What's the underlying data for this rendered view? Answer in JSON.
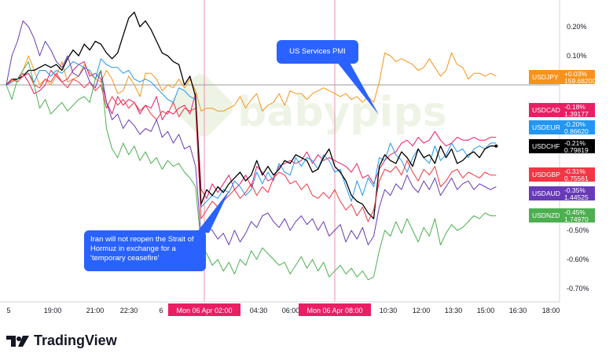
{
  "branding": {
    "logo_text": "TradingView",
    "watermark": "babypips"
  },
  "annotations": {
    "pmi": "US Services PMI",
    "iran": "Iran will not reopen the Strait of Hormuz in exchange for a 'temporary ceasefire'"
  },
  "chart_data": {
    "type": "line",
    "title": "",
    "xlabel": "",
    "ylabel": "",
    "y_unit": "%",
    "ylim": [
      -0.78,
      0.27
    ],
    "grid": false,
    "legend": "right-edge labels",
    "y_ticks": [
      "0.20%",
      "0.10%",
      "-0.50%",
      "-0.60%",
      "-0.70%"
    ],
    "x_ticks": [
      "5",
      "19:00",
      "21:00",
      "22:30",
      "6",
      "02:00",
      "04:30",
      "06:00",
      "08:00",
      "10:30",
      "12:00",
      "13:30",
      "15:00",
      "16:30",
      "18:00"
    ],
    "x_highlights": [
      "Mon 06 Apr  02:00",
      "Mon 06 Apr  08:00"
    ],
    "x": [
      "17:30",
      "17:45",
      "18:00",
      "18:15",
      "18:30",
      "18:45",
      "19:00",
      "19:15",
      "19:30",
      "19:45",
      "20:00",
      "20:15",
      "20:30",
      "20:45",
      "21:00",
      "21:15",
      "21:30",
      "21:45",
      "22:00",
      "22:15",
      "22:30",
      "22:45",
      "23:00",
      "23:15",
      "23:30",
      "23:45",
      "00:00",
      "00:15",
      "00:30",
      "00:45",
      "01:00",
      "01:15",
      "01:30",
      "01:45",
      "02:00",
      "02:15",
      "02:30",
      "02:45",
      "03:00",
      "03:15",
      "03:30",
      "03:45",
      "04:00",
      "04:15",
      "04:30",
      "04:45",
      "05:00",
      "05:15",
      "05:30",
      "05:45",
      "06:00",
      "06:15",
      "06:30",
      "06:45",
      "07:00",
      "07:15",
      "07:30",
      "07:45",
      "08:00",
      "08:15",
      "08:30",
      "08:45",
      "09:00",
      "09:15",
      "09:30",
      "09:45",
      "10:00",
      "10:15",
      "10:30",
      "10:45",
      "11:00",
      "11:15",
      "11:30",
      "11:45",
      "12:00",
      "12:15",
      "12:30",
      "12:45",
      "13:00",
      "13:15",
      "13:30",
      "13:45",
      "14:00",
      "14:15",
      "14:30",
      "14:45",
      "15:00",
      "15:15",
      "15:30"
    ],
    "series": [
      {
        "name": "USDJPY",
        "color": "#f7931a",
        "last_change": "+0.03%",
        "last_price": "159.68200",
        "values": [
          0,
          0.015,
          0.02,
          0.05,
          0.1,
          0.05,
          0,
          0.02,
          0,
          0.03,
          0.08,
          0.01,
          0.02,
          0.03,
          0.07,
          0.04,
          0.02,
          0.01,
          0.05,
          0.02,
          -0.03,
          -0.02,
          0.03,
          0,
          -0.04,
          0.04,
          0.04,
          0.02,
          -0.02,
          0,
          -0.01,
          0.02,
          -0.01,
          0.02,
          -0.02,
          -0.09,
          -0.08,
          -0.08,
          -0.09,
          -0.09,
          -0.08,
          -0.07,
          -0.04,
          -0.08,
          -0.05,
          -0.03,
          -0.09,
          -0.07,
          -0.06,
          -0.03,
          -0.07,
          -0.02,
          -0.03,
          -0.03,
          -0.05,
          -0.03,
          -0.02,
          -0.01,
          -0.02,
          -0.03,
          -0.04,
          -0.03,
          -0.05,
          -0.04,
          -0.06,
          -0.04,
          -0.06,
          0.01,
          0.11,
          0.1,
          0.08,
          0.09,
          0.08,
          0.07,
          0.05,
          0.06,
          0.09,
          0.06,
          0.03,
          0.05,
          0.11,
          0.07,
          0.06,
          0.02,
          0.04,
          0.04,
          0.03,
          0.04,
          0.03
        ]
      },
      {
        "name": "USDCAD",
        "color": "#e91e63",
        "last_change": "-0.18%",
        "last_price": "1.39177",
        "values": [
          0,
          0.01,
          0.02,
          0.04,
          0.01,
          -0.03,
          -0.02,
          0,
          0.05,
          0.03,
          0.01,
          0.02,
          0.05,
          0.07,
          0.08,
          0.03,
          0.04,
          0.02,
          -0.06,
          -0.1,
          -0.04,
          -0.07,
          -0.05,
          -0.06,
          -0.1,
          -0.07,
          -0.08,
          -0.04,
          -0.12,
          -0.09,
          -0.1,
          -0.08,
          -0.07,
          -0.1,
          -0.03,
          -0.36,
          -0.39,
          -0.34,
          -0.37,
          -0.34,
          -0.31,
          -0.36,
          -0.34,
          -0.31,
          -0.35,
          -0.28,
          -0.3,
          -0.33,
          -0.32,
          -0.28,
          -0.27,
          -0.26,
          -0.27,
          -0.26,
          -0.23,
          -0.27,
          -0.24,
          -0.26,
          -0.25,
          -0.26,
          -0.27,
          -0.28,
          -0.3,
          -0.27,
          -0.32,
          -0.31,
          -0.34,
          -0.29,
          -0.26,
          -0.24,
          -0.23,
          -0.2,
          -0.19,
          -0.21,
          -0.18,
          -0.2,
          -0.19,
          -0.16,
          -0.19,
          -0.21,
          -0.2,
          -0.18,
          -0.19,
          -0.19,
          -0.18,
          -0.19,
          -0.19,
          -0.18,
          -0.18
        ]
      },
      {
        "name": "USDEUR",
        "color": "#2196f3",
        "last_change": "-0.20%",
        "last_price": "0.86620",
        "values": [
          0,
          0.01,
          0.02,
          0.03,
          0.04,
          0.01,
          0.05,
          0.05,
          0.03,
          0.05,
          0.04,
          0.06,
          0.08,
          0.07,
          0.06,
          0.05,
          0.02,
          0.09,
          0.07,
          0.06,
          0.06,
          0.04,
          0.05,
          0.02,
          0.01,
          0.02,
          0.01,
          -0.01,
          -0.03,
          -0.05,
          -0.06,
          -0.01,
          -0.02,
          -0.04,
          -0.05,
          -0.42,
          -0.4,
          -0.38,
          -0.39,
          -0.36,
          -0.37,
          -0.33,
          -0.35,
          -0.38,
          -0.36,
          -0.3,
          -0.34,
          -0.3,
          -0.33,
          -0.27,
          -0.3,
          -0.31,
          -0.25,
          -0.28,
          -0.25,
          -0.26,
          -0.29,
          -0.24,
          -0.26,
          -0.3,
          -0.29,
          -0.35,
          -0.4,
          -0.33,
          -0.38,
          -0.32,
          -0.35,
          -0.25,
          -0.26,
          -0.2,
          -0.24,
          -0.26,
          -0.3,
          -0.25,
          -0.22,
          -0.25,
          -0.27,
          -0.21,
          -0.26,
          -0.24,
          -0.2,
          -0.23,
          -0.22,
          -0.25,
          -0.22,
          -0.21,
          -0.22,
          -0.2,
          -0.2
        ]
      },
      {
        "name": "USDCHF",
        "color": "#000000",
        "last_change": "-0.21%",
        "last_price": "0.79819",
        "values": [
          0,
          0.02,
          0.02,
          0.03,
          0.05,
          0.05,
          0.06,
          0.07,
          0.06,
          0.07,
          0.05,
          0.09,
          0.12,
          0.1,
          0.14,
          0.12,
          0.15,
          0.14,
          0.11,
          0.09,
          0.11,
          0.17,
          0.23,
          0.25,
          0.2,
          0.22,
          0.19,
          0.15,
          0.11,
          0.1,
          0.08,
          0.07,
          0,
          0.03,
          -0.04,
          -0.41,
          -0.36,
          -0.38,
          -0.35,
          -0.37,
          -0.34,
          -0.32,
          -0.3,
          -0.33,
          -0.31,
          -0.26,
          -0.31,
          -0.28,
          -0.31,
          -0.29,
          -0.26,
          -0.27,
          -0.24,
          -0.25,
          -0.26,
          -0.3,
          -0.29,
          -0.25,
          -0.22,
          -0.28,
          -0.3,
          -0.33,
          -0.38,
          -0.4,
          -0.41,
          -0.44,
          -0.46,
          -0.28,
          -0.24,
          -0.26,
          -0.27,
          -0.23,
          -0.25,
          -0.28,
          -0.22,
          -0.25,
          -0.24,
          -0.27,
          -0.21,
          -0.25,
          -0.22,
          -0.27,
          -0.26,
          -0.24,
          -0.23,
          -0.25,
          -0.22,
          -0.21,
          -0.21
        ]
      },
      {
        "name": "USDGBP",
        "color": "#f23645",
        "last_change": "-0.31%",
        "last_price": "0.75561",
        "values": [
          0,
          0.02,
          0.01,
          0.03,
          0.04,
          0,
          -0.01,
          0.02,
          0.01,
          0.04,
          0.01,
          -0.01,
          0.02,
          0.01,
          -0.01,
          0.01,
          -0.02,
          0,
          -0.08,
          -0.04,
          -0.07,
          -0.05,
          -0.08,
          -0.06,
          -0.09,
          -0.07,
          -0.1,
          -0.12,
          -0.09,
          -0.1,
          -0.06,
          -0.11,
          -0.08,
          -0.09,
          -0.08,
          -0.46,
          -0.43,
          -0.4,
          -0.42,
          -0.4,
          -0.38,
          -0.36,
          -0.39,
          -0.37,
          -0.34,
          -0.38,
          -0.35,
          -0.37,
          -0.32,
          -0.3,
          -0.31,
          -0.34,
          -0.33,
          -0.36,
          -0.34,
          -0.38,
          -0.39,
          -0.37,
          -0.39,
          -0.36,
          -0.4,
          -0.43,
          -0.41,
          -0.45,
          -0.42,
          -0.47,
          -0.43,
          -0.33,
          -0.29,
          -0.3,
          -0.28,
          -0.31,
          -0.26,
          -0.3,
          -0.33,
          -0.29,
          -0.31,
          -0.28,
          -0.35,
          -0.33,
          -0.3,
          -0.29,
          -0.32,
          -0.3,
          -0.31,
          -0.32,
          -0.3,
          -0.31,
          -0.31
        ]
      },
      {
        "name": "USDAUD",
        "color": "#673ab7",
        "last_change": "-0.35%",
        "last_price": "1.44525",
        "values": [
          0,
          0.1,
          0.15,
          0.22,
          0.2,
          0.16,
          0.1,
          0.15,
          0.12,
          0.08,
          0.06,
          0.1,
          0.04,
          0.03,
          0.06,
          0.01,
          -0.01,
          0.05,
          -0.06,
          -0.12,
          -0.1,
          -0.15,
          -0.12,
          -0.14,
          -0.17,
          -0.15,
          -0.16,
          -0.12,
          -0.18,
          -0.16,
          -0.2,
          -0.17,
          -0.22,
          -0.21,
          -0.28,
          -0.52,
          -0.49,
          -0.5,
          -0.53,
          -0.51,
          -0.55,
          -0.5,
          -0.54,
          -0.51,
          -0.47,
          -0.49,
          -0.45,
          -0.44,
          -0.47,
          -0.49,
          -0.46,
          -0.5,
          -0.47,
          -0.45,
          -0.48,
          -0.46,
          -0.5,
          -0.47,
          -0.52,
          -0.5,
          -0.48,
          -0.54,
          -0.5,
          -0.53,
          -0.49,
          -0.55,
          -0.52,
          -0.42,
          -0.36,
          -0.38,
          -0.34,
          -0.36,
          -0.31,
          -0.35,
          -0.37,
          -0.33,
          -0.36,
          -0.32,
          -0.38,
          -0.35,
          -0.32,
          -0.36,
          -0.34,
          -0.33,
          -0.36,
          -0.34,
          -0.35,
          -0.36,
          -0.35
        ]
      },
      {
        "name": "USDNZD",
        "color": "#4caf50",
        "last_change": "-0.45%",
        "last_price": "1.74970",
        "values": [
          0,
          -0.05,
          0.02,
          0.05,
          0.08,
          0,
          -0.08,
          -0.05,
          -0.1,
          -0.08,
          -0.06,
          -0.09,
          -0.07,
          -0.05,
          -0.04,
          -0.06,
          0.02,
          0.05,
          -0.15,
          -0.22,
          -0.25,
          -0.2,
          -0.24,
          -0.21,
          -0.26,
          -0.23,
          -0.27,
          -0.25,
          -0.29,
          -0.26,
          -0.28,
          -0.27,
          -0.3,
          -0.32,
          -0.35,
          -0.55,
          -0.58,
          -0.62,
          -0.6,
          -0.64,
          -0.61,
          -0.65,
          -0.6,
          -0.62,
          -0.57,
          -0.6,
          -0.56,
          -0.58,
          -0.6,
          -0.62,
          -0.61,
          -0.65,
          -0.62,
          -0.59,
          -0.63,
          -0.6,
          -0.64,
          -0.61,
          -0.66,
          -0.64,
          -0.62,
          -0.65,
          -0.63,
          -0.66,
          -0.64,
          -0.67,
          -0.66,
          -0.57,
          -0.5,
          -0.52,
          -0.47,
          -0.51,
          -0.46,
          -0.5,
          -0.54,
          -0.49,
          -0.52,
          -0.46,
          -0.55,
          -0.51,
          -0.48,
          -0.5,
          -0.49,
          -0.47,
          -0.45,
          -0.46,
          -0.44,
          -0.45,
          -0.45
        ]
      }
    ]
  }
}
